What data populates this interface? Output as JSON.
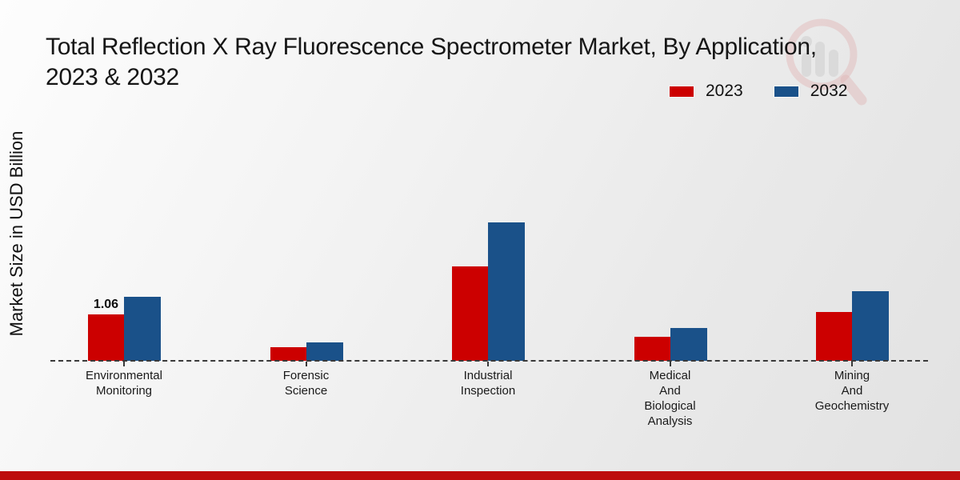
{
  "header": {
    "title_line1": "Total Reflection X Ray Fluorescence Spectrometer Market, By Application,",
    "title_line2": "2023 & 2032"
  },
  "axes": {
    "y_label": "Market Size in USD Billion"
  },
  "legend": {
    "position": "top-right",
    "items": [
      {
        "label": "2023",
        "color": "#cc0000"
      },
      {
        "label": "2032",
        "color": "#1a5189"
      }
    ]
  },
  "chart_data": {
    "type": "bar",
    "title": "Total Reflection X Ray Fluorescence Spectrometer Market, By Application, 2023 & 2032",
    "xlabel": "",
    "ylabel": "Market Size in USD Billion",
    "ylim": [
      0,
      3.5
    ],
    "grid": false,
    "baseline_style": "dashed",
    "legend_position": "top-right",
    "categories": [
      "Environmental Monitoring",
      "Forensic Science",
      "Industrial Inspection",
      "Medical And Biological Analysis",
      "Mining And Geochemistry"
    ],
    "series": [
      {
        "name": "2023",
        "color": "#cc0000",
        "values": [
          1.06,
          0.3,
          2.14,
          0.54,
          1.1
        ]
      },
      {
        "name": "2032",
        "color": "#1a5189",
        "values": [
          1.45,
          0.42,
          3.15,
          0.74,
          1.59
        ]
      }
    ],
    "annotations": [
      {
        "category": "Environmental Monitoring",
        "series": "2023",
        "text": "1.06"
      }
    ]
  },
  "colors": {
    "background_start": "#fdfdfd",
    "background_end": "#e2e2e2",
    "footer_strip": "#bd0d0d",
    "baseline": "#3a3a3a"
  },
  "watermark": {
    "name": "magnifier-bar-chart-logo",
    "ring_color": "#d98a8a",
    "bars_color": "#c5c5c5"
  }
}
